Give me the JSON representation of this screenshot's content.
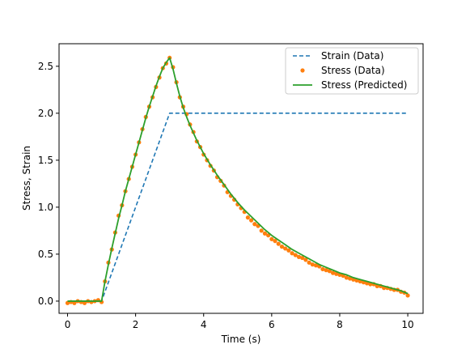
{
  "chart_data": {
    "type": "line",
    "xlabel": "Time (s)",
    "ylabel": "Stress, Strain",
    "xlim": [
      -0.25,
      10.45
    ],
    "ylim": [
      -0.13,
      2.74
    ],
    "xticks": [
      0,
      2,
      4,
      6,
      8,
      10
    ],
    "xtick_labels": [
      "0",
      "2",
      "4",
      "6",
      "8",
      "10"
    ],
    "yticks": [
      0.0,
      0.5,
      1.0,
      1.5,
      2.0,
      2.5
    ],
    "ytick_labels": [
      "0.0",
      "0.5",
      "1.0",
      "1.5",
      "2.0",
      "2.5"
    ],
    "grid": false,
    "legend_position": "top-right",
    "series": [
      {
        "name": "Strain (Data)",
        "style": "dashed-line",
        "color": "#1f77b4",
        "x": [
          0,
          1,
          3,
          10
        ],
        "y": [
          0,
          0,
          2.0,
          2.0
        ]
      },
      {
        "name": "Stress (Data)",
        "style": "markers",
        "color": "#ff7f0e",
        "x": [
          0.0,
          0.1,
          0.2,
          0.3,
          0.4,
          0.5,
          0.6,
          0.7,
          0.8,
          0.9,
          1.0,
          1.1,
          1.2,
          1.3,
          1.4,
          1.5,
          1.6,
          1.7,
          1.8,
          1.9,
          2.0,
          2.1,
          2.2,
          2.3,
          2.4,
          2.5,
          2.6,
          2.7,
          2.8,
          2.9,
          3.0,
          3.1,
          3.2,
          3.3,
          3.4,
          3.5,
          3.6,
          3.7,
          3.8,
          3.9,
          4.0,
          4.1,
          4.2,
          4.3,
          4.4,
          4.5,
          4.6,
          4.7,
          4.8,
          4.9,
          5.0,
          5.1,
          5.2,
          5.3,
          5.4,
          5.5,
          5.6,
          5.7,
          5.8,
          5.9,
          6.0,
          6.1,
          6.2,
          6.3,
          6.4,
          6.5,
          6.6,
          6.7,
          6.8,
          6.9,
          7.0,
          7.1,
          7.2,
          7.3,
          7.4,
          7.5,
          7.6,
          7.7,
          7.8,
          7.9,
          8.0,
          8.1,
          8.2,
          8.3,
          8.4,
          8.5,
          8.6,
          8.7,
          8.8,
          8.9,
          9.0,
          9.1,
          9.2,
          9.3,
          9.4,
          9.5,
          9.6,
          9.7,
          9.8,
          9.9,
          10.0
        ],
        "y": [
          -0.02,
          -0.01,
          -0.02,
          0.0,
          -0.01,
          -0.02,
          0.0,
          -0.01,
          0.0,
          0.01,
          -0.01,
          0.21,
          0.41,
          0.55,
          0.73,
          0.91,
          1.02,
          1.17,
          1.3,
          1.43,
          1.56,
          1.69,
          1.83,
          1.96,
          2.07,
          2.17,
          2.28,
          2.38,
          2.48,
          2.53,
          2.59,
          2.49,
          2.33,
          2.17,
          2.07,
          1.99,
          1.88,
          1.8,
          1.7,
          1.64,
          1.56,
          1.5,
          1.44,
          1.39,
          1.32,
          1.28,
          1.23,
          1.16,
          1.12,
          1.08,
          1.03,
          0.99,
          0.95,
          0.89,
          0.86,
          0.82,
          0.8,
          0.75,
          0.72,
          0.7,
          0.66,
          0.64,
          0.61,
          0.58,
          0.56,
          0.54,
          0.51,
          0.49,
          0.47,
          0.46,
          0.44,
          0.41,
          0.39,
          0.38,
          0.37,
          0.34,
          0.33,
          0.32,
          0.3,
          0.29,
          0.28,
          0.27,
          0.25,
          0.24,
          0.23,
          0.22,
          0.21,
          0.2,
          0.19,
          0.18,
          0.18,
          0.16,
          0.16,
          0.14,
          0.14,
          0.13,
          0.12,
          0.12,
          0.1,
          0.09,
          0.06
        ]
      },
      {
        "name": "Stress (Predicted)",
        "style": "solid-line",
        "color": "#2ca02c",
        "x": [
          0.0,
          0.5,
          1.0,
          1.1,
          1.2,
          1.3,
          1.4,
          1.5,
          1.6,
          1.7,
          1.8,
          1.9,
          2.0,
          2.1,
          2.2,
          2.3,
          2.4,
          2.5,
          2.6,
          2.7,
          2.8,
          2.9,
          3.0,
          3.1,
          3.2,
          3.3,
          3.4,
          3.5,
          3.6,
          3.7,
          3.8,
          3.9,
          4.0,
          4.2,
          4.4,
          4.6,
          4.8,
          5.0,
          5.2,
          5.4,
          5.6,
          5.8,
          6.0,
          6.2,
          6.4,
          6.6,
          6.8,
          7.0,
          7.2,
          7.4,
          7.6,
          7.8,
          8.0,
          8.2,
          8.4,
          8.6,
          8.8,
          9.0,
          9.2,
          9.4,
          9.6,
          9.8,
          10.0
        ],
        "y": [
          0.0,
          0.0,
          0.0,
          0.21,
          0.39,
          0.56,
          0.72,
          0.88,
          1.02,
          1.17,
          1.3,
          1.43,
          1.56,
          1.69,
          1.82,
          1.95,
          2.07,
          2.18,
          2.29,
          2.39,
          2.48,
          2.54,
          2.59,
          2.47,
          2.32,
          2.18,
          2.06,
          1.96,
          1.87,
          1.79,
          1.71,
          1.64,
          1.57,
          1.45,
          1.34,
          1.24,
          1.14,
          1.05,
          0.97,
          0.9,
          0.83,
          0.76,
          0.7,
          0.65,
          0.6,
          0.55,
          0.51,
          0.47,
          0.43,
          0.39,
          0.36,
          0.33,
          0.3,
          0.28,
          0.25,
          0.23,
          0.21,
          0.19,
          0.17,
          0.15,
          0.13,
          0.11,
          0.08
        ]
      }
    ]
  }
}
